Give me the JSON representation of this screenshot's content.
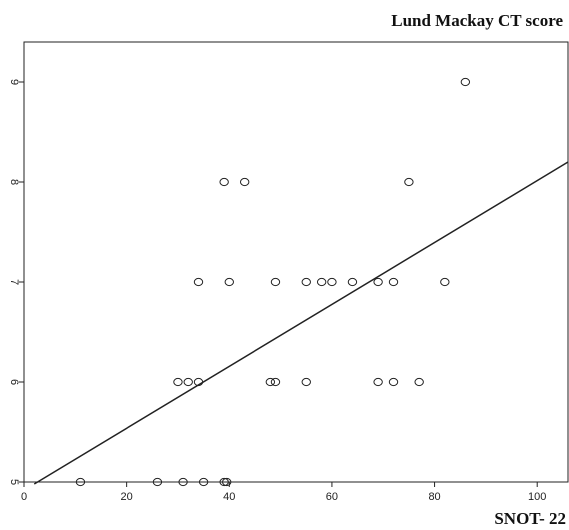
{
  "chart_data": {
    "type": "scatter",
    "title": "Lund Mackay CT score",
    "xlabel": "SNOT- 22",
    "ylabel": "",
    "xlim": [
      0,
      106
    ],
    "ylim": [
      5,
      9.4
    ],
    "x_ticks": [
      0,
      20,
      40,
      60,
      80,
      100
    ],
    "y_ticks": [
      5,
      6,
      7,
      8,
      9
    ],
    "grid": false,
    "points": [
      {
        "x": 11,
        "y": 5
      },
      {
        "x": 26,
        "y": 5
      },
      {
        "x": 31,
        "y": 5
      },
      {
        "x": 35,
        "y": 5
      },
      {
        "x": 39,
        "y": 5
      },
      {
        "x": 39.5,
        "y": 5
      },
      {
        "x": 30,
        "y": 6
      },
      {
        "x": 32,
        "y": 6
      },
      {
        "x": 34,
        "y": 6
      },
      {
        "x": 48,
        "y": 6
      },
      {
        "x": 49,
        "y": 6
      },
      {
        "x": 55,
        "y": 6
      },
      {
        "x": 69,
        "y": 6
      },
      {
        "x": 72,
        "y": 6
      },
      {
        "x": 77,
        "y": 6
      },
      {
        "x": 34,
        "y": 7
      },
      {
        "x": 40,
        "y": 7
      },
      {
        "x": 49,
        "y": 7
      },
      {
        "x": 55,
        "y": 7
      },
      {
        "x": 58,
        "y": 7
      },
      {
        "x": 60,
        "y": 7
      },
      {
        "x": 64,
        "y": 7
      },
      {
        "x": 69,
        "y": 7
      },
      {
        "x": 72,
        "y": 7
      },
      {
        "x": 82,
        "y": 7
      },
      {
        "x": 39,
        "y": 8
      },
      {
        "x": 43,
        "y": 8
      },
      {
        "x": 75,
        "y": 8
      },
      {
        "x": 86,
        "y": 9
      }
    ],
    "fit_line": {
      "x": [
        2,
        106
      ],
      "y": [
        4.98,
        8.2
      ]
    }
  }
}
